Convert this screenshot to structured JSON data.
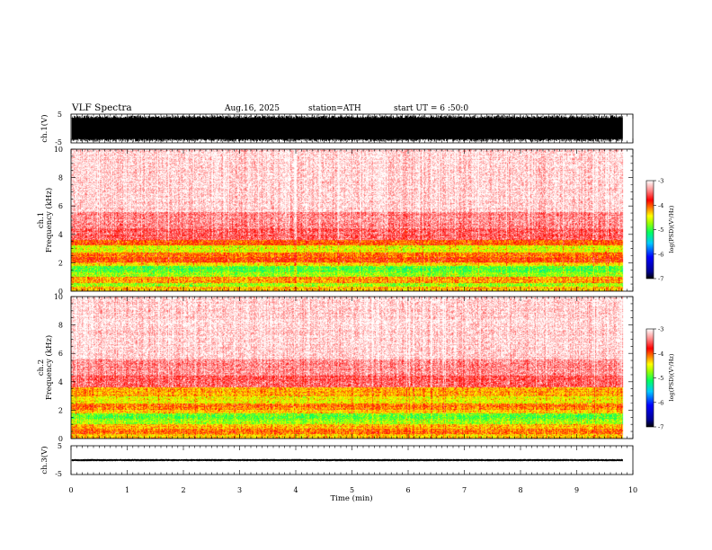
{
  "header": {
    "title": "VLF Spectra",
    "date": "Aug.16, 2025",
    "station": "station=ATH",
    "start": "start UT = 6 :50:0"
  },
  "chart_data": [
    {
      "type": "line",
      "panel": "ch1-waveform",
      "ylabel": "ch.1(V)",
      "ylim": [
        -5,
        5
      ],
      "y_ticks": [
        "5",
        "-5"
      ],
      "xlim": [
        0,
        10
      ],
      "x_data_end": 9.82,
      "envelope_v": [
        -4.6,
        4.6
      ],
      "color": "#000000"
    },
    {
      "type": "heatmap",
      "panel": "ch1-spectrogram",
      "channel_label": "ch.1",
      "ylabel": "Frequency (kHz)",
      "ylim": [
        0,
        10
      ],
      "y_ticks": [
        "0",
        "2",
        "4",
        "6",
        "8",
        "10"
      ],
      "xlim": [
        0,
        10
      ],
      "x_data_end": 9.82,
      "colorbar": {
        "label": "log(PSD)(V²/Hz)",
        "range": [
          -7,
          -3
        ],
        "ticks": [
          "-3",
          "-4",
          "-5",
          "-6",
          "-7"
        ]
      },
      "freq_profile_log_psd": [
        {
          "f": [
            0.0,
            0.3
          ],
          "value": -4.3
        },
        {
          "f": [
            0.3,
            0.6
          ],
          "value": -4.7
        },
        {
          "f": [
            0.6,
            1.0
          ],
          "value": -4.2
        },
        {
          "f": [
            1.0,
            1.3
          ],
          "value": -4.75
        },
        {
          "f": [
            1.3,
            1.8
          ],
          "value": -4.95
        },
        {
          "f": [
            1.8,
            2.0
          ],
          "value": -4.4
        },
        {
          "f": [
            2.0,
            2.4
          ],
          "value": -3.95
        },
        {
          "f": [
            2.4,
            2.7
          ],
          "value": -4.1
        },
        {
          "f": [
            2.7,
            3.2
          ],
          "value": -4.55
        },
        {
          "f": [
            3.2,
            3.6
          ],
          "value": -4.05
        },
        {
          "f": [
            3.6,
            4.4
          ],
          "value": -3.55
        },
        {
          "f": [
            4.4,
            5.6
          ],
          "value": -3.4
        },
        {
          "f": [
            5.6,
            10.0
          ],
          "value": -3.15
        }
      ]
    },
    {
      "type": "heatmap",
      "panel": "ch2-spectrogram",
      "channel_label": "ch.2",
      "ylabel": "Frequency (kHz)",
      "ylim": [
        0,
        10
      ],
      "y_ticks": [
        "0",
        "2",
        "4",
        "6",
        "8",
        "10"
      ],
      "xlim": [
        0,
        10
      ],
      "x_data_end": 9.82,
      "colorbar": {
        "label": "log(PSD)(V²/Hz)",
        "range": [
          -7,
          -3
        ],
        "ticks": [
          "-3",
          "-4",
          "-5",
          "-6",
          "-7"
        ]
      },
      "freq_profile_log_psd": [
        {
          "f": [
            0.0,
            0.3
          ],
          "value": -4.3
        },
        {
          "f": [
            0.3,
            0.7
          ],
          "value": -4.1
        },
        {
          "f": [
            0.7,
            1.0
          ],
          "value": -4.3
        },
        {
          "f": [
            1.0,
            1.4
          ],
          "value": -4.75
        },
        {
          "f": [
            1.4,
            1.8
          ],
          "value": -4.9
        },
        {
          "f": [
            1.8,
            2.0
          ],
          "value": -4.35
        },
        {
          "f": [
            2.0,
            2.5
          ],
          "value": -4.1
        },
        {
          "f": [
            2.5,
            3.0
          ],
          "value": -4.45
        },
        {
          "f": [
            3.0,
            3.6
          ],
          "value": -4.25
        },
        {
          "f": [
            3.6,
            4.4
          ],
          "value": -3.55
        },
        {
          "f": [
            4.4,
            5.6
          ],
          "value": -3.4
        },
        {
          "f": [
            5.6,
            10.0
          ],
          "value": -3.15
        }
      ]
    },
    {
      "type": "line",
      "panel": "ch3-waveform",
      "ylabel": "ch.3(V)",
      "xlabel": "Time (min)",
      "ylim": [
        -5,
        5
      ],
      "y_ticks": [
        "5",
        "-5"
      ],
      "xlim": [
        0,
        10
      ],
      "x_ticks": [
        "0",
        "1",
        "2",
        "3",
        "4",
        "5",
        "6",
        "7",
        "8",
        "9",
        "10"
      ],
      "x_data_end": 9.82,
      "baseline_v": 0,
      "envelope_v": [
        -0.4,
        0.4
      ],
      "color": "#000000"
    }
  ],
  "colors": {
    "scale": [
      "#000080",
      "#0000ff",
      "#00c0ff",
      "#00ff80",
      "#80ff00",
      "#ffff00",
      "#ff8000",
      "#ff0000",
      "#ff9090",
      "#ffffff"
    ]
  }
}
